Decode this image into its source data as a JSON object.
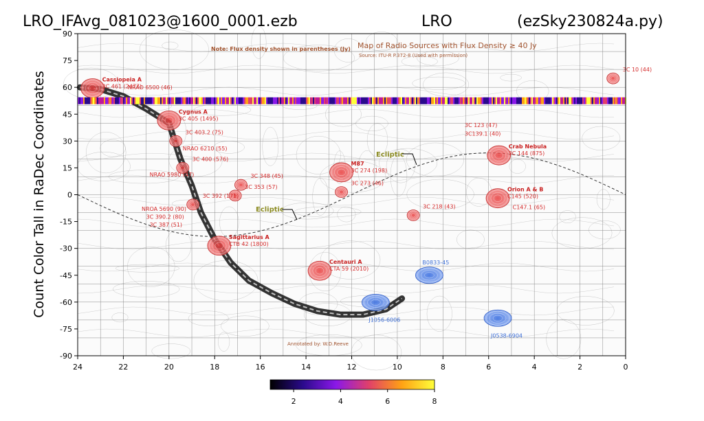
{
  "header": {
    "left": "LRO_IFAvg_081023@1600_0001.ezb",
    "center": "LRO",
    "right": "(ezSky230824a.py)"
  },
  "chart_data": {
    "type": "scatter",
    "ylabel": "Count Color Tall in RaDec Coordinates",
    "xlim": [
      24,
      0
    ],
    "ylim": [
      -90,
      90
    ],
    "x_ticks": [
      24,
      22,
      20,
      18,
      16,
      14,
      12,
      10,
      8,
      6,
      4,
      2,
      0
    ],
    "y_ticks": [
      90,
      75,
      60,
      45,
      30,
      15,
      0,
      -15,
      -30,
      -45,
      -60,
      -75,
      -90
    ],
    "grid": false,
    "track_dec": 52.5,
    "colorbar": {
      "ticks": [
        2,
        4,
        6,
        8
      ],
      "range": [
        1,
        8
      ],
      "colormap": "gnuplot2"
    },
    "map_title": "Map of Radio Sources with Flux Density ≥ 40 Jy",
    "map_source": "Source: ITU-R P.372-8 (Used with permission)",
    "map_note": "Note: Flux density shown in parentheses (Jy)",
    "annotated_by": "Annotated by: W.D.Reeve",
    "ecliptic_label": "Ecliptic",
    "sources": [
      {
        "ra": 23.35,
        "dec": 59.5,
        "label": "Cassiopeia A",
        "sub": "3C 461 (2477)",
        "color": "red"
      },
      {
        "ra": 20.0,
        "dec": 41.5,
        "label": "Cygnus A",
        "sub": "3C 405 (1495)",
        "color": "red"
      },
      {
        "ra": 19.7,
        "dec": 30.0,
        "label": "",
        "sub": "3C 403.2 (75)",
        "color": "red"
      },
      {
        "ra": 19.4,
        "dec": 15.0,
        "label": "",
        "sub": "3C 400 (576)",
        "color": "red"
      },
      {
        "ra": 16.85,
        "dec": 5.5,
        "label": "",
        "sub": "3C 348 (45)",
        "color": "red"
      },
      {
        "ra": 17.1,
        "dec": -0.5,
        "label": "",
        "sub": "3C 353 (57)",
        "color": "red"
      },
      {
        "ra": 18.95,
        "dec": -5.5,
        "label": "",
        "sub": "3C 392 (171)",
        "color": "red"
      },
      {
        "ra": 17.8,
        "dec": -28.5,
        "label": "Sagittarius A",
        "sub": "CTB 42 (1800)",
        "color": "red"
      },
      {
        "ra": 13.4,
        "dec": -42.5,
        "label": "Centauri A",
        "sub": "CTA 59 (2010)",
        "color": "red"
      },
      {
        "ra": 12.45,
        "dec": 12.5,
        "label": "M87",
        "sub": "3C 274 (198)",
        "color": "red"
      },
      {
        "ra": 12.45,
        "dec": 1.5,
        "label": "",
        "sub": "3C 273 (46)",
        "color": "red"
      },
      {
        "ra": 9.3,
        "dec": -11.5,
        "label": "",
        "sub": "3C 218 (43)",
        "color": "red"
      },
      {
        "ra": 5.55,
        "dec": 22.0,
        "label": "Crab Nebula",
        "sub": "3C 144 (875)",
        "color": "red"
      },
      {
        "ra": 5.6,
        "dec": -2.0,
        "label": "Orion A & B",
        "sub": "C145 (520)",
        "color": "red"
      },
      {
        "ra": 0.55,
        "dec": 65.0,
        "label": "",
        "sub": "3C 10 (44)",
        "color": "red"
      },
      {
        "ra": 10.95,
        "dec": -60.2,
        "label": "",
        "sub": "J1056-6006",
        "color": "blue"
      },
      {
        "ra": 8.6,
        "dec": -45.0,
        "label": "",
        "sub": "B0833-45",
        "color": "blue"
      },
      {
        "ra": 5.6,
        "dec": -69.0,
        "label": "",
        "sub": "J0538-6904",
        "color": "blue"
      }
    ],
    "extra_labels": [
      {
        "ra": 21.8,
        "dec": 59.0,
        "text": "NRAO 6500 (46)"
      },
      {
        "ra": 19.4,
        "dec": 24.8,
        "text": "NRAO 6210 (55)"
      },
      {
        "ra": 20.85,
        "dec": 10.2,
        "text": "NRAO 5980 (47)"
      },
      {
        "ra": 21.2,
        "dec": -9.0,
        "text": "NROA 5690 (90)"
      },
      {
        "ra": 21.0,
        "dec": -13.5,
        "text": "3C 390.2 (80)"
      },
      {
        "ra": 20.85,
        "dec": -17.8,
        "text": "3C 387  (51)"
      },
      {
        "ra": 7.05,
        "dec": 37.8,
        "text": "3C 123 (47)"
      },
      {
        "ra": 7.05,
        "dec": 33.0,
        "text": "3C139.1 (40)"
      },
      {
        "ra": 4.95,
        "dec": -8.0,
        "text": "C147.1 (65)"
      }
    ]
  }
}
